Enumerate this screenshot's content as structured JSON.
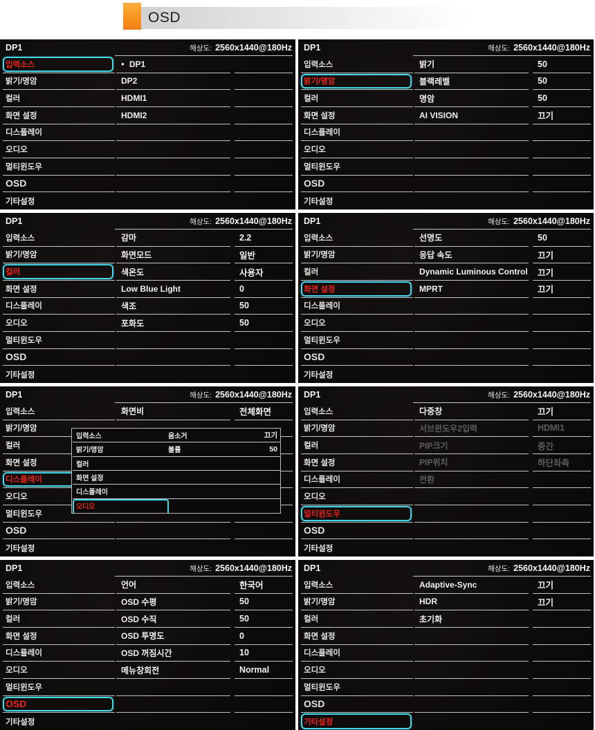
{
  "page_header": {
    "title": "OSD"
  },
  "icons": {
    "bullet": "●"
  },
  "colors": {
    "accent_cyan": "#46d5e9",
    "selected_red": "#ea2416",
    "brand_orange": "#f7941e",
    "panel_bg": "#0e0b0b",
    "separator": "#c6c6c6",
    "disabled_text": "#5e5e5e"
  },
  "osd": {
    "source": "DP1",
    "resolution_label": "해상도:",
    "resolution_value": "2560x1440@180Hz",
    "sidebar": [
      "입력소스",
      "밝기/명암",
      "컬러",
      "화면 설정",
      "디스플레이",
      "오디오",
      "멀티윈도우",
      "OSD",
      "기타설정"
    ]
  },
  "panels": [
    {
      "id": "input-source",
      "selected": 0,
      "rows": [
        {
          "label": "DP1",
          "bullet": true
        },
        {
          "label": "DP2"
        },
        {
          "label": "HDMI1"
        },
        {
          "label": "HDMI2"
        }
      ]
    },
    {
      "id": "brightness-contrast",
      "selected": 1,
      "rows": [
        {
          "label": "밝기",
          "value": "50"
        },
        {
          "label": "블랙레벨",
          "value": "50"
        },
        {
          "label": "명암",
          "value": "50"
        },
        {
          "label": "AI VISION",
          "value": "끄기"
        }
      ]
    },
    {
      "id": "color",
      "selected": 2,
      "rows": [
        {
          "label": "감마",
          "value": "2.2"
        },
        {
          "label": "화면모드",
          "value": "일반"
        },
        {
          "label": "색온도",
          "value": "사용자"
        },
        {
          "label": "Low Blue Light",
          "value": "0"
        },
        {
          "label": "색조",
          "value": "50"
        },
        {
          "label": "포화도",
          "value": "50"
        }
      ]
    },
    {
      "id": "screen-settings",
      "selected": 3,
      "rows": [
        {
          "label": "선명도",
          "value": "50"
        },
        {
          "label": "응답 속도",
          "value": "끄기"
        },
        {
          "label": "Dynamic Luminous Control",
          "value": "끄기"
        },
        {
          "label": "MPRT",
          "value": "끄기"
        }
      ]
    },
    {
      "id": "display",
      "selected": 4,
      "rows": [
        {
          "label": "화면비",
          "value": "전체화면"
        }
      ],
      "overlay": {
        "sidebar": [
          "입력소스",
          "밝기/명암",
          "컬러",
          "화면 설정",
          "디스플레이",
          "오디오"
        ],
        "selected": 5,
        "rows": [
          {
            "label": "음소거",
            "value": "끄기"
          },
          {
            "label": "볼륨",
            "value": "50"
          }
        ]
      }
    },
    {
      "id": "multi-window",
      "selected": 6,
      "rows": [
        {
          "label": "다중창",
          "value": "끄기"
        },
        {
          "label": "서브윈도우2입력",
          "value": "HDMI1",
          "disabled": true
        },
        {
          "label": "PIP크기",
          "value": "중간",
          "disabled": true
        },
        {
          "label": "PIP위치",
          "value": "하단좌측",
          "disabled": true
        },
        {
          "label": "전환",
          "value": "",
          "disabled": true
        }
      ]
    },
    {
      "id": "osd",
      "selected": 7,
      "rows": [
        {
          "label": "언어",
          "value": "한국어"
        },
        {
          "label": "OSD 수평",
          "value": "50"
        },
        {
          "label": "OSD 수직",
          "value": "50"
        },
        {
          "label": "OSD 투명도",
          "value": "0"
        },
        {
          "label": "OSD 꺼짐시간",
          "value": "10"
        },
        {
          "label": "메뉴창회전",
          "value": "Normal"
        }
      ]
    },
    {
      "id": "other-settings",
      "selected": 8,
      "rows": [
        {
          "label": "Adaptive-Sync",
          "value": "끄기"
        },
        {
          "label": "HDR",
          "value": "끄기"
        },
        {
          "label": "초기화",
          "value": ""
        }
      ]
    }
  ]
}
